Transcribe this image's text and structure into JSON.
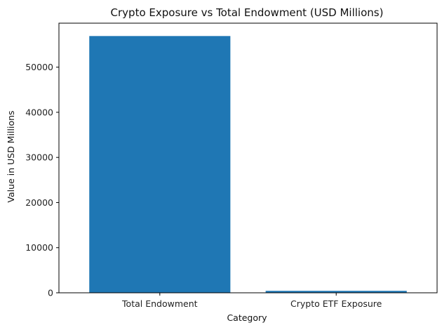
{
  "chart_data": {
    "type": "bar",
    "title": "Crypto Exposure vs Total Endowment (USD Millions)",
    "xlabel": "Category",
    "ylabel": "Value in USD Millions",
    "categories": [
      "Total Endowment",
      "Crypto ETF Exposure"
    ],
    "values": [
      56900,
      430
    ],
    "ylim": [
      0,
      59750
    ],
    "yticks": [
      0,
      10000,
      20000,
      30000,
      40000,
      50000
    ],
    "ytick_labels": [
      "0",
      "10000",
      "20000",
      "30000",
      "40000",
      "50000"
    ],
    "bar_color": "#1f77b4",
    "grid": false,
    "legend": "none"
  }
}
